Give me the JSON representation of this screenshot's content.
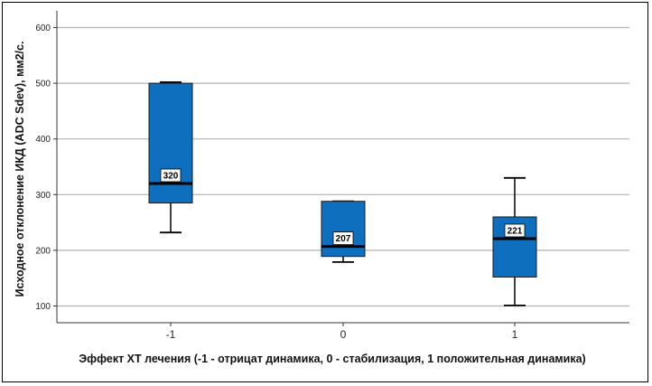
{
  "chart_data": {
    "type": "boxplot",
    "title": "",
    "xlabel": "Эффект ХТ лечения (-1 - отрицат динамика, 0 - стабилизация, 1 положительная динамика)",
    "ylabel": "Исходное отклонение ИКД (ADC Sdev), мм2/с.",
    "ylim": [
      70,
      630
    ],
    "yticks": [
      "100",
      "200",
      "300",
      "400",
      "500",
      "600"
    ],
    "grid": "horizontal",
    "box_color": "#0d6fbd",
    "categories": [
      "-1",
      "0",
      "1"
    ],
    "boxes": [
      {
        "category": "-1",
        "min": 232,
        "q1": 285,
        "median": 320,
        "q3": 500,
        "max": 502,
        "median_label": "320"
      },
      {
        "category": "0",
        "min": 179,
        "q1": 189,
        "median": 207,
        "q3": 288,
        "max": 288,
        "median_label": "207"
      },
      {
        "category": "1",
        "min": 101,
        "q1": 152,
        "median": 221,
        "q3": 260,
        "max": 330,
        "median_label": "221"
      }
    ]
  }
}
